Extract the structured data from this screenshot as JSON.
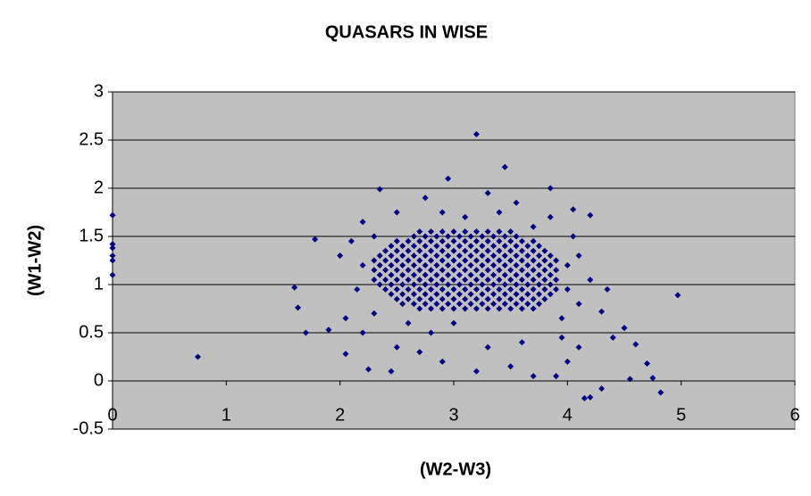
{
  "chart_data": {
    "type": "scatter",
    "title": "QUASARS IN WISE",
    "x_label": "(W2-W3)",
    "y_label": "(W1-W2)",
    "xlim": [
      0,
      6
    ],
    "ylim": [
      -0.5,
      3
    ],
    "xticks": [
      0,
      1,
      2,
      3,
      4,
      5,
      6
    ],
    "yticks": [
      -0.5,
      0,
      0.5,
      1,
      1.5,
      2,
      2.5,
      3
    ],
    "grid": true,
    "color": "#000080",
    "plot_background": "#c0c0c0",
    "x": [
      2.7,
      2.8,
      2.9,
      3,
      3.1,
      3.2,
      3.3,
      3.4,
      3.5,
      2.5,
      2.6,
      2.7,
      2.8,
      2.9,
      3,
      3.1,
      3.2,
      3.3,
      3.4,
      3.5,
      3.6,
      3.7,
      2.4,
      2.5,
      2.6,
      2.7,
      2.8,
      2.9,
      3,
      3.1,
      3.2,
      3.3,
      3.4,
      3.5,
      3.6,
      3.7,
      3.8,
      2.3,
      2.4,
      2.5,
      2.6,
      2.7,
      2.8,
      2.9,
      3,
      3.1,
      3.2,
      3.3,
      3.4,
      3.5,
      3.6,
      3.7,
      3.8,
      3.9,
      2.3,
      2.4,
      2.5,
      2.6,
      2.7,
      2.8,
      2.9,
      3,
      3.1,
      3.2,
      3.3,
      3.4,
      3.5,
      3.6,
      3.7,
      3.8,
      3.9,
      2.3,
      2.4,
      2.5,
      2.6,
      2.7,
      2.8,
      2.9,
      3,
      3.1,
      3.2,
      3.3,
      3.4,
      3.5,
      3.6,
      3.7,
      3.8,
      3.9,
      2.4,
      2.5,
      2.6,
      2.7,
      2.8,
      2.9,
      3,
      3.1,
      3.2,
      3.3,
      3.4,
      3.5,
      3.6,
      3.7,
      3.8,
      3.9,
      2.5,
      2.6,
      2.7,
      2.8,
      2.9,
      3,
      3.1,
      3.2,
      3.3,
      3.4,
      3.5,
      3.6,
      3.7,
      3.8,
      2.7,
      2.8,
      2.9,
      3,
      3.1,
      3.2,
      3.3,
      3.4,
      3.5,
      3.6,
      3.7,
      2.65,
      2.75,
      2.85,
      2.95,
      3.05,
      3.15,
      3.25,
      3.35,
      3.45,
      3.55,
      2.45,
      2.55,
      2.65,
      2.75,
      2.85,
      2.95,
      3.05,
      3.15,
      3.25,
      3.35,
      3.45,
      3.55,
      3.65,
      3.75,
      2.35,
      2.45,
      2.55,
      2.65,
      2.75,
      2.85,
      2.95,
      3.05,
      3.15,
      3.25,
      3.35,
      3.45,
      3.55,
      3.65,
      3.75,
      3.85,
      2.35,
      2.45,
      2.55,
      2.65,
      2.75,
      2.85,
      2.95,
      3.05,
      3.15,
      3.25,
      3.35,
      3.45,
      3.55,
      3.65,
      3.75,
      3.85,
      2.35,
      2.45,
      2.55,
      2.65,
      2.75,
      2.85,
      2.95,
      3.05,
      3.15,
      3.25,
      3.35,
      3.45,
      3.55,
      3.65,
      3.75,
      3.85,
      2.35,
      2.45,
      2.55,
      2.65,
      2.75,
      2.85,
      2.95,
      3.05,
      3.15,
      3.25,
      3.35,
      3.45,
      3.55,
      3.65,
      3.75,
      3.85,
      2.45,
      2.55,
      2.65,
      2.75,
      2.85,
      2.95,
      3.05,
      3.15,
      3.25,
      3.35,
      3.45,
      3.55,
      3.65,
      3.75,
      3.85,
      2.55,
      2.65,
      2.75,
      2.85,
      2.95,
      3.05,
      3.15,
      3.25,
      3.35,
      3.45,
      3.55,
      3.65,
      3.75,
      0,
      0,
      0,
      0,
      0,
      0,
      0.75,
      4.97,
      3.2,
      3.45,
      2.95,
      2.35,
      3.85,
      4.05,
      4.2,
      1.78,
      1.6,
      1.63,
      1.7,
      1.9,
      2.05,
      2.25,
      2.45,
      4.82,
      4.2,
      4.3,
      4.15,
      4.55,
      4.7,
      4.75,
      4.6,
      4.4,
      4.5,
      4.3,
      4.35,
      4.2,
      4.1,
      4.05,
      2,
      2.1,
      2.15,
      2.05,
      2.2,
      2.5,
      2.7,
      2.9,
      3.2,
      3.5,
      3.7,
      3.9,
      4,
      4.1,
      3.95,
      3.6,
      3.3,
      2.8,
      3,
      2.6,
      2.3,
      3.95,
      4.1,
      2.2,
      2.5,
      2.75,
      3.3,
      3.55,
      3.85,
      4,
      4,
      2.2,
      2.3,
      3.1,
      2.9,
      3.4,
      3.7
    ],
    "values": [
      1.55,
      1.55,
      1.55,
      1.55,
      1.55,
      1.55,
      1.55,
      1.55,
      1.55,
      1.45,
      1.45,
      1.45,
      1.45,
      1.45,
      1.45,
      1.45,
      1.45,
      1.45,
      1.45,
      1.45,
      1.45,
      1.45,
      1.35,
      1.35,
      1.35,
      1.35,
      1.35,
      1.35,
      1.35,
      1.35,
      1.35,
      1.35,
      1.35,
      1.35,
      1.35,
      1.35,
      1.35,
      1.25,
      1.25,
      1.25,
      1.25,
      1.25,
      1.25,
      1.25,
      1.25,
      1.25,
      1.25,
      1.25,
      1.25,
      1.25,
      1.25,
      1.25,
      1.25,
      1.25,
      1.15,
      1.15,
      1.15,
      1.15,
      1.15,
      1.15,
      1.15,
      1.15,
      1.15,
      1.15,
      1.15,
      1.15,
      1.15,
      1.15,
      1.15,
      1.15,
      1.15,
      1.05,
      1.05,
      1.05,
      1.05,
      1.05,
      1.05,
      1.05,
      1.05,
      1.05,
      1.05,
      1.05,
      1.05,
      1.05,
      1.05,
      1.05,
      1.05,
      1.05,
      0.95,
      0.95,
      0.95,
      0.95,
      0.95,
      0.95,
      0.95,
      0.95,
      0.95,
      0.95,
      0.95,
      0.95,
      0.95,
      0.95,
      0.95,
      0.95,
      0.85,
      0.85,
      0.85,
      0.85,
      0.85,
      0.85,
      0.85,
      0.85,
      0.85,
      0.85,
      0.85,
      0.85,
      0.85,
      0.85,
      0.75,
      0.75,
      0.75,
      0.75,
      0.75,
      0.75,
      0.75,
      0.75,
      0.75,
      0.75,
      0.75,
      1.5,
      1.5,
      1.5,
      1.5,
      1.5,
      1.5,
      1.5,
      1.5,
      1.5,
      1.5,
      1.4,
      1.4,
      1.4,
      1.4,
      1.4,
      1.4,
      1.4,
      1.4,
      1.4,
      1.4,
      1.4,
      1.4,
      1.4,
      1.4,
      1.3,
      1.3,
      1.3,
      1.3,
      1.3,
      1.3,
      1.3,
      1.3,
      1.3,
      1.3,
      1.3,
      1.3,
      1.3,
      1.3,
      1.3,
      1.3,
      1.2,
      1.2,
      1.2,
      1.2,
      1.2,
      1.2,
      1.2,
      1.2,
      1.2,
      1.2,
      1.2,
      1.2,
      1.2,
      1.2,
      1.2,
      1.2,
      1.1,
      1.1,
      1.1,
      1.1,
      1.1,
      1.1,
      1.1,
      1.1,
      1.1,
      1.1,
      1.1,
      1.1,
      1.1,
      1.1,
      1.1,
      1.1,
      1,
      1,
      1,
      1,
      1,
      1,
      1,
      1,
      1,
      1,
      1,
      1,
      1,
      1,
      1,
      1,
      0.9,
      0.9,
      0.9,
      0.9,
      0.9,
      0.9,
      0.9,
      0.9,
      0.9,
      0.9,
      0.9,
      0.9,
      0.9,
      0.9,
      0.9,
      0.8,
      0.8,
      0.8,
      0.8,
      0.8,
      0.8,
      0.8,
      0.8,
      0.8,
      0.8,
      0.8,
      0.8,
      0.8,
      1.72,
      1.42,
      1.38,
      1.3,
      1.25,
      1.1,
      0.25,
      0.89,
      2.56,
      2.22,
      2.1,
      1.99,
      2,
      1.78,
      1.72,
      1.47,
      0.97,
      0.76,
      0.5,
      0.53,
      0.28,
      0.12,
      0.1,
      -0.12,
      -0.17,
      -0.08,
      -0.18,
      0.02,
      0.18,
      0.03,
      0.38,
      0.45,
      0.55,
      0.72,
      0.95,
      1.05,
      1.3,
      1.5,
      1.3,
      1.45,
      0.95,
      0.65,
      0.5,
      0.35,
      0.3,
      0.2,
      0.1,
      0.15,
      0.05,
      0.05,
      0.2,
      0.35,
      0.45,
      0.4,
      0.35,
      0.5,
      0.6,
      0.6,
      0.7,
      0.65,
      0.8,
      1.65,
      1.75,
      1.9,
      1.95,
      1.85,
      1.7,
      1.2,
      0.95,
      1.2,
      1.5,
      1.7,
      1.75,
      1.75,
      1.6
    ]
  }
}
